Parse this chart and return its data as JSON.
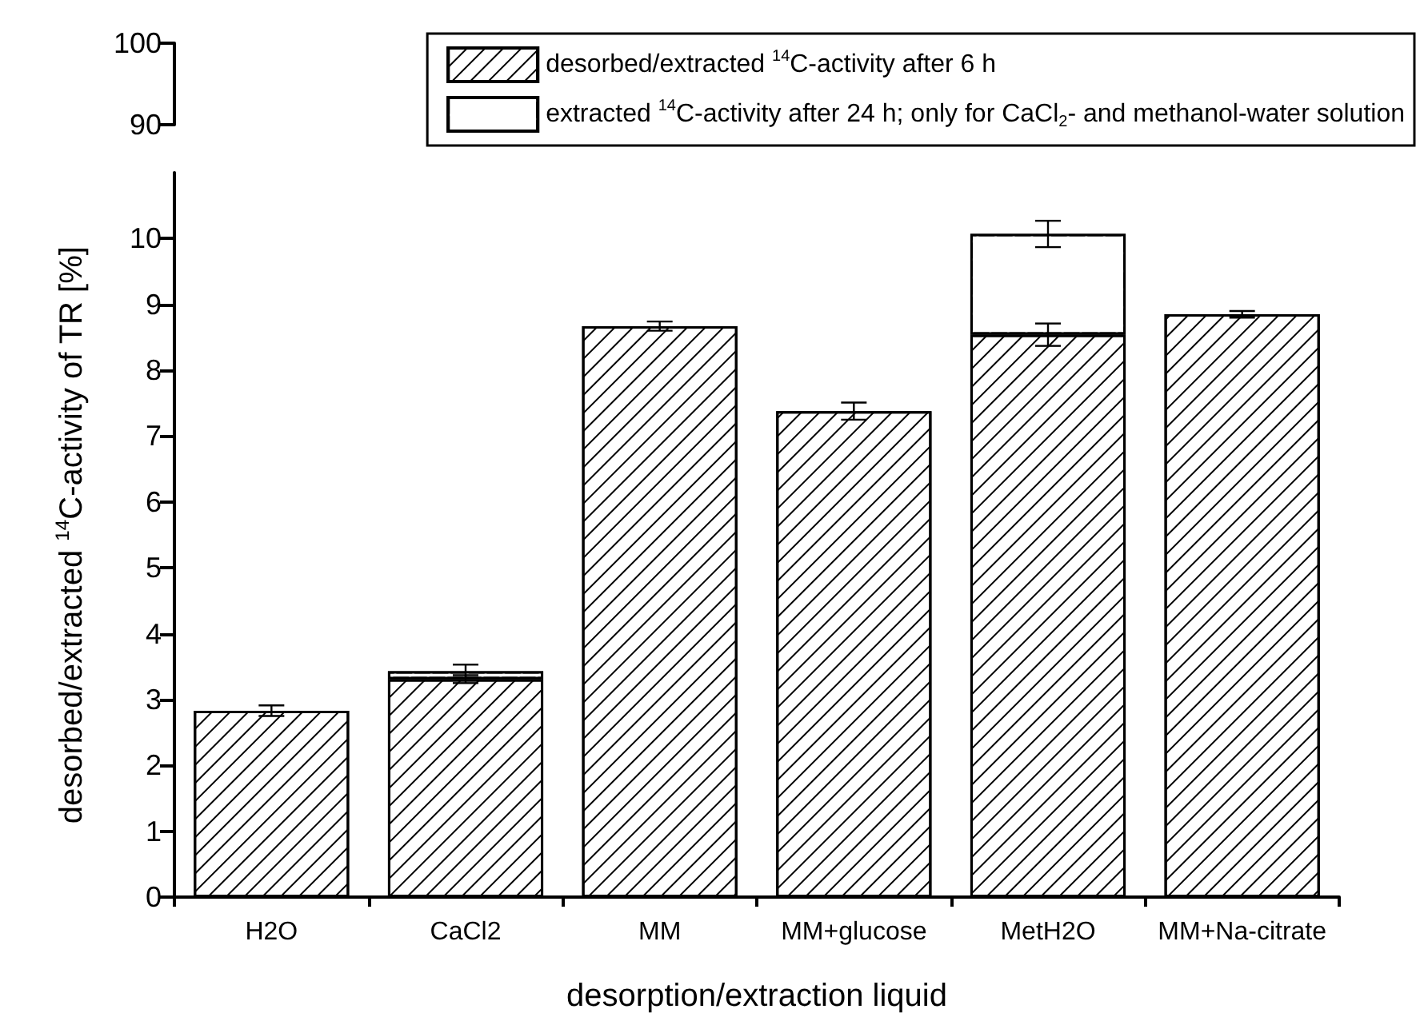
{
  "chart_data": [
    {
      "type": "other",
      "annotations": [
        "100",
        "90"
      ]
    },
    {
      "type": "bar",
      "stacked": true,
      "categories": [
        "H2O",
        "CaCl2",
        "MM",
        "MM+glucose",
        "MetH2O",
        "MM+Na-citrate"
      ],
      "xlabel": "desorption/extraction liquid",
      "ylabel": "desorbed/extracted $^{14}$C-activity of TR [%]",
      "ylim": [
        0,
        11
      ],
      "yticks": [
        0,
        1,
        2,
        3,
        4,
        5,
        6,
        7,
        8,
        9,
        10
      ],
      "legend": "top right",
      "series": [
        {
          "name": "desorbed/extracted $^{14}$C-activity after 6 h",
          "color": "#000000",
          "values": [
            2.83,
            3.31,
            8.67,
            7.38,
            8.54,
            8.85
          ],
          "errors": [
            0.08,
            0.06,
            0.07,
            0.13,
            0.17,
            0.05
          ]
        },
        {
          "name": "extracted $^{14}$C-activity after 24 h; only for CaCl$_{2}$- and methanol-water solution",
          "color": "#ffffff",
          "values": [
            null,
            0.12,
            null,
            null,
            1.53,
            null
          ],
          "errors": [
            null,
            0.1,
            null,
            null,
            0.2,
            null
          ]
        }
      ]
    }
  ]
}
